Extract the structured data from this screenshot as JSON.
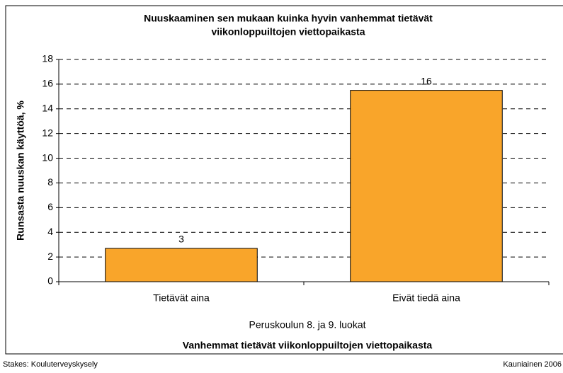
{
  "chart_data": {
    "type": "bar",
    "title": [
      "Nuuskaaminen sen mukaan kuinka hyvin vanhemmat tietävät",
      "viikonloppuiltojen viettopaikasta"
    ],
    "y_label": "Runsasta nuuskan käyttöä, %",
    "x_sublabel": "Peruskoulun 8. ja 9. luokat",
    "x_label": "Vanhemmat tietävät viikonloppuiltojen viettopaikasta",
    "source": "Stakes: Kouluterveyskysely",
    "note": "Kauniainen 2006",
    "categories": [
      "Tietävät aina",
      "Eivät tiedä aina"
    ],
    "values": [
      2.7,
      15.5
    ],
    "value_labels": [
      "3",
      "16"
    ],
    "color": "#f9a52a",
    "ylim": [
      0,
      18
    ],
    "yticks": [
      0,
      2,
      4,
      6,
      8,
      10,
      12,
      14,
      16,
      18
    ],
    "grid": true
  }
}
